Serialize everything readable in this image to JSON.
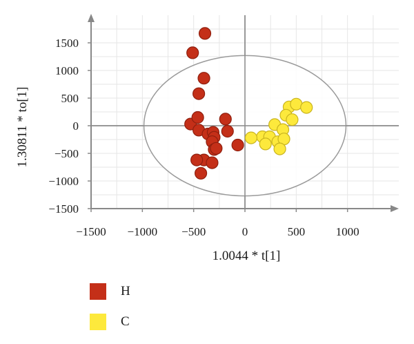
{
  "chart_data": {
    "type": "scatter",
    "xlabel": "1.0044 * t[1]",
    "ylabel": "1.30811 * to[1]",
    "xlim": [
      -1500,
      1500
    ],
    "ylim": [
      -1500,
      2000
    ],
    "x_ticks": [
      "−1500",
      "−1000",
      "−500",
      "0",
      "500",
      "1000"
    ],
    "y_ticks": [
      "1500",
      "1000",
      "500",
      "0",
      "−500",
      "−1000",
      "−1500"
    ],
    "grid": true,
    "ellipse": {
      "cx": 0,
      "cy": 0,
      "rx": 985,
      "ry": 1270
    },
    "series": [
      {
        "name": "H",
        "color": "#c42f18",
        "points": [
          [
            -390,
            1670
          ],
          [
            -510,
            1320
          ],
          [
            -400,
            860
          ],
          [
            -450,
            580
          ],
          [
            -530,
            30
          ],
          [
            -460,
            150
          ],
          [
            -450,
            -80
          ],
          [
            -360,
            -150
          ],
          [
            -310,
            -120
          ],
          [
            -300,
            -210
          ],
          [
            -190,
            120
          ],
          [
            -170,
            -100
          ],
          [
            -320,
            -290
          ],
          [
            -300,
            -430
          ],
          [
            -280,
            -410
          ],
          [
            -400,
            -620
          ],
          [
            -470,
            -620
          ],
          [
            -320,
            -670
          ],
          [
            -430,
            -860
          ],
          [
            -70,
            -350
          ]
        ]
      },
      {
        "name": "C",
        "color": "#fde93c",
        "points": [
          [
            430,
            340
          ],
          [
            500,
            390
          ],
          [
            600,
            330
          ],
          [
            400,
            190
          ],
          [
            460,
            110
          ],
          [
            290,
            20
          ],
          [
            370,
            -70
          ],
          [
            170,
            -200
          ],
          [
            60,
            -220
          ],
          [
            240,
            -200
          ],
          [
            200,
            -330
          ],
          [
            320,
            -290
          ],
          [
            380,
            -240
          ],
          [
            340,
            -420
          ]
        ]
      }
    ]
  },
  "legend": [
    {
      "label": "H",
      "color": "#c42f18"
    },
    {
      "label": "C",
      "color": "#fde93c"
    }
  ]
}
